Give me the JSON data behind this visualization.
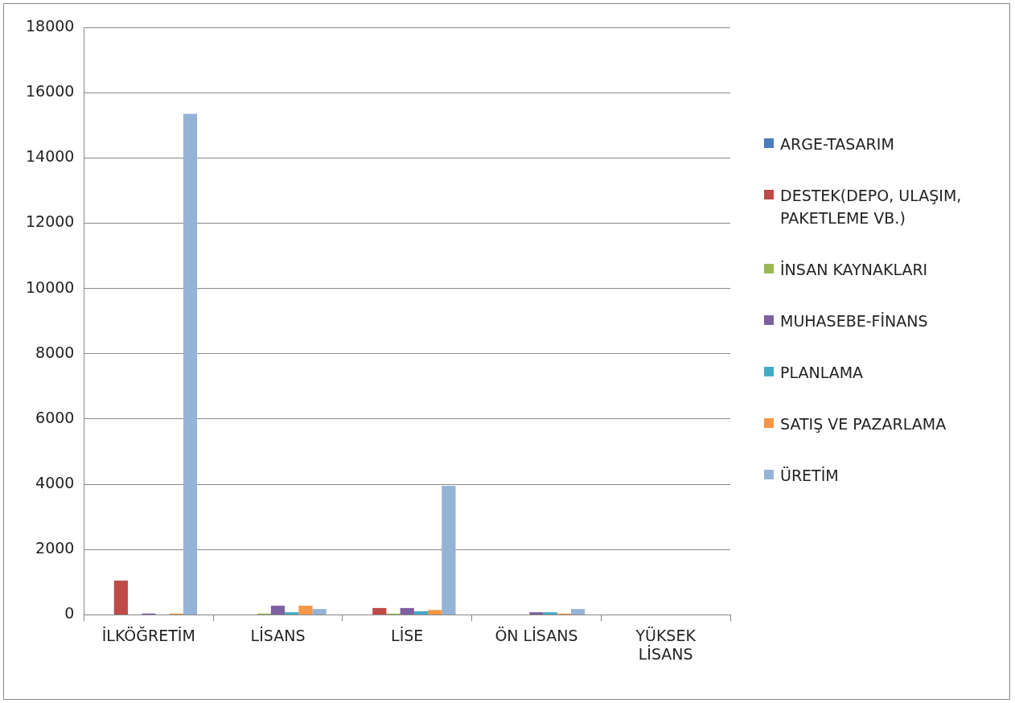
{
  "chart_data": {
    "type": "bar",
    "categories": [
      "İLKÖĞRETİM",
      "LİSANS",
      "LİSE",
      "ÖN LİSANS",
      "YÜKSEK LİSANS"
    ],
    "series": [
      {
        "name": "ARGE-TASARIM",
        "color": "#4a7ebb",
        "values": [
          0,
          0,
          0,
          0,
          0
        ]
      },
      {
        "name": "DESTEK(DEPO, ULAŞIM, PAKETLEME VB.)",
        "color": "#be4b48",
        "values": [
          1050,
          0,
          210,
          0,
          0
        ]
      },
      {
        "name": "İNSAN KAYNAKLARI",
        "color": "#98b954",
        "values": [
          0,
          40,
          40,
          0,
          0
        ]
      },
      {
        "name": "MUHASEBE-FİNANS",
        "color": "#7d60a0",
        "values": [
          40,
          280,
          210,
          80,
          0
        ]
      },
      {
        "name": "PLANLAMA",
        "color": "#46aac5",
        "values": [
          0,
          80,
          110,
          80,
          0
        ]
      },
      {
        "name": "SATIŞ VE PAZARLAMA",
        "color": "#f79646",
        "values": [
          40,
          280,
          150,
          40,
          0
        ]
      },
      {
        "name": "ÜRETİM",
        "color": "#95b3d7",
        "values": [
          15350,
          180,
          3950,
          180,
          0
        ]
      }
    ],
    "ylim": [
      0,
      18000
    ],
    "yticks": [
      0,
      2000,
      4000,
      6000,
      8000,
      10000,
      12000,
      14000,
      16000,
      18000
    ],
    "grid": "y",
    "legend": "right"
  }
}
